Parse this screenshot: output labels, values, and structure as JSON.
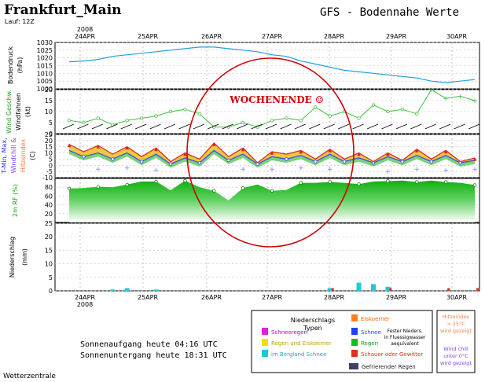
{
  "header": {
    "city": "Frankfurt_Main",
    "run": "Lauf: 12Z",
    "product": "GFS - Bodennahe Werte"
  },
  "footer": {
    "sunrise": "Sonnenaufgang heute 04:16 UTC",
    "sunset": "Sonnenuntergang heute 18:31 UTC",
    "credit": "Wetterzentrale"
  },
  "annotation": {
    "text": "WOCHENENDE ☺",
    "color": "#d00000"
  },
  "year_label": "2008",
  "date_labels": [
    "24APR",
    "25APR",
    "26APR",
    "27APR",
    "28APR",
    "29APR",
    "30APR"
  ],
  "legend": {
    "title": "Niederschlags\nTypen",
    "items": [
      {
        "label": "Schneeregen",
        "color": "#e020e0",
        "text_color": "#c000c0"
      },
      {
        "label": "Regen und Eiskoerner",
        "color": "#f0e000",
        "text_color": "#c0a000"
      },
      {
        "label": "im Bergland Schnee",
        "color": "#20c8d8",
        "text_color": "#20a8b8"
      },
      {
        "label": "Eiskoerner",
        "color": "#ff8020",
        "text_color": "#ff6000"
      },
      {
        "label": "Schnee",
        "color": "#2040ff",
        "text_color": "#2040ff"
      },
      {
        "label": "Regen",
        "color": "#10c010",
        "text_color": "#10a010"
      },
      {
        "label": "Schauer oder Gewitter",
        "color": "#e03020",
        "text_color": "#e03020"
      },
      {
        "label": "Gefrierender Regen",
        "color": "#404060",
        "text_color": "#202020"
      }
    ],
    "fester": "Fester Nieders.\nin Fluessigwasser\naequivalent",
    "hitzeindex": "Hitzeindex\n> 25°C\nwird gezeigt",
    "windchill": "Wind chill\nunter 0°C\nwird gezeigt"
  },
  "panels": {
    "pressure": {
      "ylabel": "Bodendruck",
      "unit": "(hPa)",
      "ticks": [
        "1030",
        "1025",
        "1020",
        "1015",
        "1010",
        "1005",
        "1000"
      ]
    },
    "wind": {
      "ylabel_green": "Wind Geschw.",
      "ylabel_black": "Windfahnen",
      "unit": "(kt)",
      "ticks": [
        "20",
        "15",
        "10",
        "5",
        "0"
      ]
    },
    "temp": {
      "ylabel_1": "T-Min, Max,",
      "ylabel_2": "Windchill &",
      "ylabel_3": "Hitzeindex",
      "unit": "(C)",
      "ticks": [
        "25",
        "20",
        "15",
        "10",
        "5",
        "0",
        "-5",
        "-10"
      ]
    },
    "rh": {
      "ylabel": "2m RF (%)",
      "ticks": [
        "80",
        "60",
        "40",
        "20"
      ]
    },
    "precip": {
      "ylabel": "Niederschlag",
      "unit": "(mm)",
      "ticks": [
        "25",
        "20",
        "15",
        "10",
        "5",
        "0"
      ]
    }
  },
  "chart_data": [
    {
      "type": "line",
      "name": "pressure",
      "ylabel": "Bodendruck (hPa)",
      "ylim": [
        1000,
        1030
      ],
      "x_steps": [
        0,
        1,
        2,
        3,
        4,
        5,
        6,
        7,
        8,
        9,
        10,
        11,
        12,
        13,
        14,
        15,
        16,
        17,
        18,
        19,
        20,
        21,
        22,
        23,
        24,
        25,
        26,
        27,
        28
      ],
      "values": [
        1017.5,
        1018,
        1019,
        1021,
        1022,
        1023,
        1024,
        1025,
        1026,
        1027,
        1027,
        1026,
        1025,
        1024,
        1022,
        1021,
        1018,
        1016,
        1014,
        1012,
        1011,
        1010,
        1009,
        1008,
        1007,
        1005,
        1004,
        1005,
        1006
      ],
      "color": "#20a0e0"
    },
    {
      "type": "line",
      "name": "wind",
      "ylabel": "Wind Geschw. (kt)",
      "ylim": [
        0,
        20
      ],
      "values": [
        6,
        5,
        7,
        4,
        6,
        7,
        8,
        10,
        11,
        9,
        3,
        3,
        5,
        3,
        6,
        7,
        6,
        12,
        8,
        10,
        7,
        13,
        10,
        11,
        9,
        20,
        16,
        17,
        15
      ],
      "color": "#40c040"
    },
    {
      "type": "area",
      "name": "temperature",
      "ylabel": "T (C)",
      "ylim": [
        -10,
        25
      ],
      "series": [
        {
          "name": "T-Max",
          "values": [
            17,
            11,
            16,
            9,
            15,
            7,
            14,
            3,
            10,
            5,
            18,
            7,
            14,
            2,
            11,
            9,
            12,
            5,
            13,
            5,
            10,
            3,
            10,
            4,
            13,
            5,
            12,
            3,
            6
          ],
          "color": "#e02020"
        },
        {
          "name": "T-Min",
          "values": [
            12,
            7,
            10,
            5,
            10,
            3,
            9,
            1,
            6,
            2,
            12,
            4,
            9,
            1,
            7,
            5,
            8,
            3,
            9,
            3,
            6,
            2,
            7,
            3,
            8,
            3,
            8,
            2,
            4
          ],
          "color": "#4040ff"
        },
        {
          "name": "Windchill",
          "values": [
            null,
            null,
            -3,
            null,
            -2,
            null,
            -4,
            null,
            null,
            null,
            null,
            null,
            -3,
            null,
            -3,
            null,
            -2,
            null,
            -3,
            null,
            null,
            null,
            -5,
            null,
            -3,
            null,
            -4,
            null,
            -3
          ],
          "color": "#8080ff"
        }
      ]
    },
    {
      "type": "area",
      "name": "relative_humidity",
      "ylabel": "2m RF (%)",
      "ylim": [
        0,
        100
      ],
      "values": [
        77,
        78,
        81,
        80,
        86,
        93,
        93,
        73,
        95,
        80,
        72,
        50,
        78,
        86,
        72,
        74,
        90,
        90,
        92,
        90,
        87,
        93,
        94,
        95,
        92,
        95,
        92,
        90,
        85
      ],
      "color": "#20c020"
    },
    {
      "type": "bar",
      "name": "precipitation",
      "ylabel": "Niederschlag (mm)",
      "ylim": [
        0,
        25
      ],
      "series": [
        {
          "name": "Regen",
          "values": [
            0,
            0,
            0,
            0.5,
            1,
            0,
            0.5,
            0,
            0,
            0,
            0,
            0,
            0,
            0,
            0,
            0,
            0,
            0,
            1,
            0,
            3,
            2.5,
            1.5,
            0,
            0,
            0,
            0,
            0,
            0
          ],
          "color": "#20c8d8"
        },
        {
          "name": "Schauer oder Gewitter",
          "values": [
            0,
            0,
            0,
            0,
            0,
            0,
            0,
            0,
            0,
            0,
            0,
            0,
            0,
            0,
            0,
            0,
            0,
            0,
            1,
            0,
            0,
            0,
            1,
            0,
            0,
            0,
            1,
            0,
            1
          ],
          "color": "#e03020"
        }
      ]
    }
  ]
}
